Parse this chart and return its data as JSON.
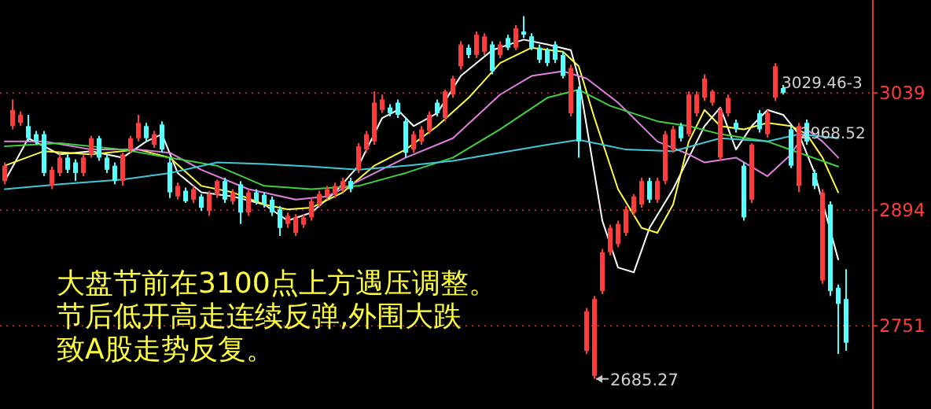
{
  "chart_data": {
    "type": "candlestick",
    "categories": [
      null,
      null,
      null,
      null,
      null,
      null,
      null,
      null,
      null,
      null,
      null,
      null,
      null,
      null,
      null,
      null,
      null,
      null,
      null,
      null,
      null,
      null,
      null,
      null,
      null,
      null,
      null,
      null,
      null,
      null,
      null,
      null,
      null,
      null,
      null,
      null,
      null,
      null,
      null,
      null,
      null,
      null,
      null,
      null,
      null,
      null,
      null,
      null,
      null,
      null,
      null,
      null,
      null,
      null,
      null,
      null,
      null,
      null,
      null,
      null,
      null,
      null,
      null,
      null,
      null,
      null,
      null,
      null,
      null,
      null,
      null,
      null,
      null,
      null,
      null,
      null,
      null,
      null,
      null,
      null,
      null,
      null,
      null,
      null,
      null,
      null,
      null,
      null,
      null,
      null,
      null,
      null,
      null,
      null,
      null,
      null,
      null,
      null,
      null,
      null,
      null,
      null,
      null,
      null,
      null,
      null,
      null,
      null
    ],
    "ohlc": [
      [
        2930,
        2953,
        2926,
        2949
      ],
      [
        2998,
        3031,
        2994,
        3018
      ],
      [
        3002,
        3016,
        2998,
        3012
      ],
      [
        2998,
        3012,
        2979,
        2983
      ],
      [
        2988,
        2992,
        2975,
        2979
      ],
      [
        2988,
        2992,
        2936,
        2940
      ],
      [
        2924,
        2948,
        2920,
        2944
      ],
      [
        2940,
        2963,
        2936,
        2959
      ],
      [
        2959,
        2963,
        2940,
        2944
      ],
      [
        2953,
        2957,
        2930,
        2940
      ],
      [
        2940,
        2963,
        2936,
        2959
      ],
      [
        2963,
        2986,
        2959,
        2983
      ],
      [
        2983,
        2986,
        2955,
        2959
      ],
      [
        2959,
        2963,
        2940,
        2944
      ],
      [
        2949,
        2953,
        2926,
        2930
      ],
      [
        2930,
        2965,
        2924,
        2963
      ],
      [
        2969,
        2986,
        2965,
        2983
      ],
      [
        2983,
        3012,
        2979,
        3002
      ],
      [
        2998,
        3002,
        2979,
        2983
      ],
      [
        2975,
        2992,
        2971,
        2988
      ],
      [
        3000,
        3004,
        2965,
        2969
      ],
      [
        2953,
        2959,
        2909,
        2916
      ],
      [
        2911,
        2928,
        2907,
        2924
      ],
      [
        2918,
        2922,
        2903,
        2905
      ],
      [
        2907,
        2924,
        2903,
        2920
      ],
      [
        2911,
        2914,
        2893,
        2897
      ],
      [
        2893,
        2918,
        2887,
        2914
      ],
      [
        2913,
        2932,
        2909,
        2930
      ],
      [
        2930,
        2934,
        2903,
        2907
      ],
      [
        2905,
        2920,
        2901,
        2916
      ],
      [
        2926,
        2930,
        2877,
        2891
      ],
      [
        2891,
        2920,
        2887,
        2916
      ],
      [
        2916,
        2920,
        2901,
        2905
      ],
      [
        2913,
        2916,
        2897,
        2901
      ],
      [
        2907,
        2911,
        2887,
        2891
      ],
      [
        2895,
        2899,
        2862,
        2872
      ],
      [
        2877,
        2891,
        2872,
        2887
      ],
      [
        2866,
        2889,
        2862,
        2885
      ],
      [
        2876,
        2889,
        2872,
        2885
      ],
      [
        2885,
        2909,
        2881,
        2905
      ],
      [
        2901,
        2918,
        2897,
        2914
      ],
      [
        2911,
        2924,
        2907,
        2920
      ],
      [
        2913,
        2928,
        2909,
        2924
      ],
      [
        2920,
        2934,
        2916,
        2930
      ],
      [
        2930,
        2934,
        2916,
        2920
      ],
      [
        2944,
        2977,
        2940,
        2973
      ],
      [
        2969,
        2992,
        2965,
        2988
      ],
      [
        2979,
        3041,
        2975,
        3027
      ],
      [
        3018,
        3037,
        3014,
        3031
      ],
      [
        3021,
        3025,
        3010,
        3014
      ],
      [
        3027,
        3031,
        3008,
        3012
      ],
      [
        3004,
        3008,
        2959,
        2965
      ],
      [
        2969,
        2992,
        2965,
        2988
      ],
      [
        2979,
        2998,
        2975,
        2994
      ],
      [
        2992,
        3016,
        2988,
        3012
      ],
      [
        3027,
        3031,
        3010,
        3014
      ],
      [
        3008,
        3043,
        3004,
        3041
      ],
      [
        3037,
        3060,
        3033,
        3057
      ],
      [
        3072,
        3103,
        3068,
        3099
      ],
      [
        3095,
        3099,
        3082,
        3086
      ],
      [
        3086,
        3115,
        3082,
        3111
      ],
      [
        3090,
        3113,
        3086,
        3109
      ],
      [
        3099,
        3103,
        3062,
        3066
      ],
      [
        3086,
        3103,
        3082,
        3099
      ],
      [
        3107,
        3111,
        3092,
        3095
      ],
      [
        3095,
        3123,
        3092,
        3119
      ],
      [
        3115,
        3134,
        3107,
        3111
      ],
      [
        3109,
        3113,
        3092,
        3095
      ],
      [
        3095,
        3099,
        3076,
        3080
      ],
      [
        3092,
        3095,
        3072,
        3076
      ],
      [
        3099,
        3103,
        3076,
        3080
      ],
      [
        3086,
        3090,
        3057,
        3060
      ],
      [
        3014,
        3074,
        3010,
        3070
      ],
      [
        3043,
        3047,
        2959,
        2979
      ],
      [
        2720,
        2773,
        2716,
        2769
      ],
      [
        2689,
        2788,
        2685.27,
        2784
      ],
      [
        2794,
        2846,
        2790,
        2842
      ],
      [
        2842,
        2876,
        2838,
        2872
      ],
      [
        2852,
        2881,
        2848,
        2877
      ],
      [
        2866,
        2899,
        2862,
        2895
      ],
      [
        2891,
        2914,
        2887,
        2911
      ],
      [
        2901,
        2934,
        2897,
        2930
      ],
      [
        2930,
        2934,
        2903,
        2907
      ],
      [
        2907,
        2934,
        2903,
        2930
      ],
      [
        2930,
        2992,
        2926,
        2988
      ],
      [
        2969,
        2998,
        2965,
        2994
      ],
      [
        2998,
        3002,
        2979,
        2983
      ],
      [
        2988,
        3041,
        2985,
        3037
      ],
      [
        3014,
        3041,
        3010,
        3037
      ],
      [
        3033,
        3062,
        3029,
        3057
      ],
      [
        3027,
        3043,
        3023,
        3041
      ],
      [
        2959,
        3021,
        2955,
        3018
      ],
      [
        3014,
        3037,
        3010,
        3033
      ],
      [
        3002,
        3006,
        2990,
        2994
      ],
      [
        2949,
        2953,
        2881,
        2885
      ],
      [
        2907,
        2977,
        2903,
        2975
      ],
      [
        3014,
        3018,
        2990,
        2994
      ],
      [
        2988,
        3018,
        2984,
        3014
      ],
      [
        3033,
        3076,
        3029,
        3072
      ],
      [
        3045,
        3049,
        3037,
        3039
      ],
      [
        2994,
        2998,
        2946,
        2949
      ],
      [
        2924,
        3002,
        2916,
        2998
      ],
      [
        3002,
        3006,
        2975,
        2979
      ],
      [
        2940,
        2944,
        2920,
        2924
      ],
      [
        2807,
        2920,
        2803,
        2916
      ],
      [
        2901,
        2905,
        2788,
        2794
      ],
      [
        2798,
        2802,
        2716,
        2778
      ],
      [
        2784,
        2821,
        2720,
        2730
      ]
    ],
    "colors": [
      "#ff3c3c",
      "#ff3c3c",
      "#ff3c3c",
      "#54ffff",
      "#54ffff",
      "#54ffff",
      "#ff3c3c",
      "#ff3c3c",
      "#54ffff",
      "#54ffff",
      "#ff3c3c",
      "#ff3c3c",
      "#54ffff",
      "#54ffff",
      "#54ffff",
      "#ff3c3c",
      "#ff3c3c",
      "#ff3c3c",
      "#54ffff",
      "#ff3c3c",
      "#54ffff",
      "#54ffff",
      "#ff3c3c",
      "#54ffff",
      "#ff3c3c",
      "#54ffff",
      "#ff3c3c",
      "#ff3c3c",
      "#54ffff",
      "#ff3c3c",
      "#54ffff",
      "#ff3c3c",
      "#54ffff",
      "#54ffff",
      "#54ffff",
      "#54ffff",
      "#ff3c3c",
      "#ff3c3c",
      "#ff3c3c",
      "#ff3c3c",
      "#ff3c3c",
      "#ff3c3c",
      "#ff3c3c",
      "#ff3c3c",
      "#54ffff",
      "#ff3c3c",
      "#ff3c3c",
      "#ff3c3c",
      "#ff3c3c",
      "#54ffff",
      "#54ffff",
      "#54ffff",
      "#ff3c3c",
      "#ff3c3c",
      "#ff3c3c",
      "#54ffff",
      "#ff3c3c",
      "#ff3c3c",
      "#ff3c3c",
      "#54ffff",
      "#ff3c3c",
      "#ff3c3c",
      "#54ffff",
      "#ff3c3c",
      "#54ffff",
      "#ff3c3c",
      "#54ffff",
      "#54ffff",
      "#54ffff",
      "#54ffff",
      "#54ffff",
      "#54ffff",
      "#ff3c3c",
      "#54ffff",
      "#ff3c3c",
      "#ff3c3c",
      "#ff3c3c",
      "#ff3c3c",
      "#ff3c3c",
      "#ff3c3c",
      "#ff3c3c",
      "#ff3c3c",
      "#54ffff",
      "#ff3c3c",
      "#ff3c3c",
      "#ff3c3c",
      "#54ffff",
      "#ff3c3c",
      "#ff3c3c",
      "#ff3c3c",
      "#ff3c3c",
      "#ff3c3c",
      "#ff3c3c",
      "#54ffff",
      "#54ffff",
      "#ff3c3c",
      "#54ffff",
      "#ff3c3c",
      "#ff3c3c",
      "#54ffff",
      "#54ffff",
      "#ff3c3c",
      "#54ffff",
      "#54ffff",
      "#ff3c3c",
      "#54ffff",
      "#54ffff",
      "#54ffff"
    ],
    "series": [
      {
        "type": "line",
        "color": "#ffffff",
        "values": [
          2930,
          null,
          null,
          2983,
          null,
          null,
          null,
          2963,
          null,
          null,
          null,
          2967,
          null,
          null,
          null,
          2959,
          null,
          null,
          2979,
          null,
          2988,
          null,
          2940,
          null,
          null,
          2916,
          null,
          null,
          null,
          2911,
          null,
          null,
          null,
          2901,
          null,
          null,
          2881,
          null,
          null,
          2891,
          null,
          null,
          2916,
          null,
          null,
          2949,
          null,
          null,
          3008,
          null,
          3018,
          null,
          2998,
          null,
          null,
          3014,
          null,
          null,
          3060,
          null,
          null,
          null,
          3092,
          null,
          null,
          null,
          3105,
          null,
          null,
          3099,
          null,
          null,
          3092,
          3057,
          null,
          null,
          2881,
          null,
          2823,
          null,
          2817,
          null,
          2872,
          null,
          null,
          2920,
          null,
          2959,
          null,
          2998,
          null,
          3021,
          null,
          2969,
          null,
          2998,
          null,
          3018,
          null,
          3012,
          null,
          2988,
          null,
          2940,
          null,
          null,
          2833,
          null
        ]
      },
      {
        "type": "line",
        "color": "#ffff40",
        "values": [
          2949,
          null,
          null,
          null,
          null,
          2967,
          null,
          null,
          null,
          null,
          null,
          2963,
          null,
          null,
          null,
          null,
          null,
          2969,
          null,
          null,
          null,
          2959,
          null,
          null,
          null,
          2924,
          null,
          null,
          null,
          2916,
          null,
          null,
          null,
          2901,
          null,
          null,
          2895,
          null,
          null,
          2897,
          null,
          null,
          null,
          2916,
          null,
          null,
          null,
          2949,
          null,
          null,
          null,
          2969,
          null,
          null,
          null,
          2998,
          null,
          null,
          null,
          3033,
          null,
          null,
          null,
          3076,
          null,
          null,
          null,
          3095,
          null,
          null,
          null,
          3090,
          null,
          3072,
          null,
          3008,
          null,
          null,
          2920,
          null,
          null,
          2872,
          null,
          2866,
          null,
          2901,
          null,
          2979,
          null,
          3018,
          null,
          2998,
          null,
          null,
          2994,
          null,
          null,
          3002,
          null,
          null,
          2998,
          null,
          2988,
          null,
          2959,
          null,
          2916,
          null
        ]
      },
      {
        "type": "line",
        "color": "#e080e0",
        "values": [
          2979,
          null,
          null,
          null,
          null,
          2979,
          null,
          null,
          null,
          null,
          null,
          2969,
          null,
          null,
          null,
          null,
          null,
          2969,
          null,
          null,
          null,
          2965,
          null,
          null,
          null,
          2944,
          null,
          null,
          null,
          null,
          null,
          2920,
          null,
          null,
          null,
          null,
          null,
          2907,
          null,
          null,
          null,
          2911,
          null,
          null,
          null,
          2930,
          null,
          null,
          null,
          null,
          null,
          2959,
          null,
          null,
          null,
          null,
          null,
          2983,
          null,
          null,
          null,
          null,
          null,
          3037,
          null,
          null,
          null,
          3060,
          null,
          null,
          null,
          3066,
          null,
          null,
          3057,
          null,
          null,
          null,
          3027,
          null,
          null,
          null,
          null,
          2979,
          null,
          null,
          null,
          2963,
          null,
          2953,
          null,
          null,
          null,
          2959,
          null,
          null,
          null,
          2936,
          null,
          null,
          2963,
          null,
          2994,
          null,
          2979,
          null,
          2959,
          null
        ]
      },
      {
        "type": "line",
        "color": "#40d040",
        "values": [
          2973,
          null,
          null,
          null,
          null,
          null,
          null,
          2977,
          null,
          null,
          null,
          null,
          null,
          null,
          null,
          2969,
          null,
          null,
          null,
          null,
          null,
          2959,
          null,
          null,
          null,
          null,
          null,
          2949,
          null,
          null,
          null,
          null,
          null,
          2924,
          null,
          null,
          null,
          null,
          null,
          2920,
          null,
          null,
          null,
          null,
          null,
          2924,
          null,
          null,
          null,
          null,
          null,
          2940,
          null,
          null,
          null,
          null,
          null,
          2959,
          null,
          null,
          null,
          null,
          null,
          2994,
          null,
          null,
          null,
          null,
          null,
          3033,
          null,
          null,
          null,
          3043,
          null,
          null,
          null,
          3023,
          null,
          null,
          null,
          null,
          null,
          3004,
          null,
          null,
          null,
          2998,
          null,
          null,
          null,
          2988,
          null,
          null,
          null,
          null,
          null,
          2979,
          null,
          null,
          null,
          2965,
          null,
          null,
          null,
          null,
          2948,
          null
        ]
      },
      {
        "type": "line",
        "color": "#40c8d8",
        "values": [
          2920,
          null,
          null,
          null,
          null,
          null,
          null,
          2926,
          null,
          null,
          null,
          null,
          null,
          null,
          null,
          2932,
          null,
          null,
          null,
          null,
          null,
          2940,
          null,
          null,
          null,
          null,
          null,
          2953,
          null,
          null,
          null,
          null,
          null,
          2951,
          null,
          null,
          null,
          null,
          null,
          2948,
          null,
          null,
          null,
          null,
          null,
          2944,
          null,
          null,
          null,
          null,
          null,
          2949,
          null,
          null,
          null,
          null,
          null,
          2955,
          null,
          null,
          null,
          null,
          null,
          2965,
          null,
          null,
          null,
          null,
          null,
          2975,
          null,
          null,
          null,
          2981,
          null,
          null,
          null,
          null,
          null,
          2969,
          null,
          null,
          null,
          null,
          null,
          2967,
          null,
          null,
          null,
          null,
          null,
          2983,
          null,
          null,
          null,
          null,
          null,
          2979,
          null,
          null,
          null,
          2988,
          null,
          null,
          null,
          null,
          2983,
          null
        ]
      }
    ],
    "ylim": [
      2648,
      3154
    ],
    "yticks": [
      3039,
      2894,
      2751
    ],
    "grid": "y",
    "tick_labels": "y",
    "annotations": [
      "2685.27",
      "3029.46-3",
      "2968.52",
      "大盘节前在3100点上方遇压调整。",
      "节后低开高走连续反弹,外围大跌",
      "致A股走势反复。"
    ]
  }
}
